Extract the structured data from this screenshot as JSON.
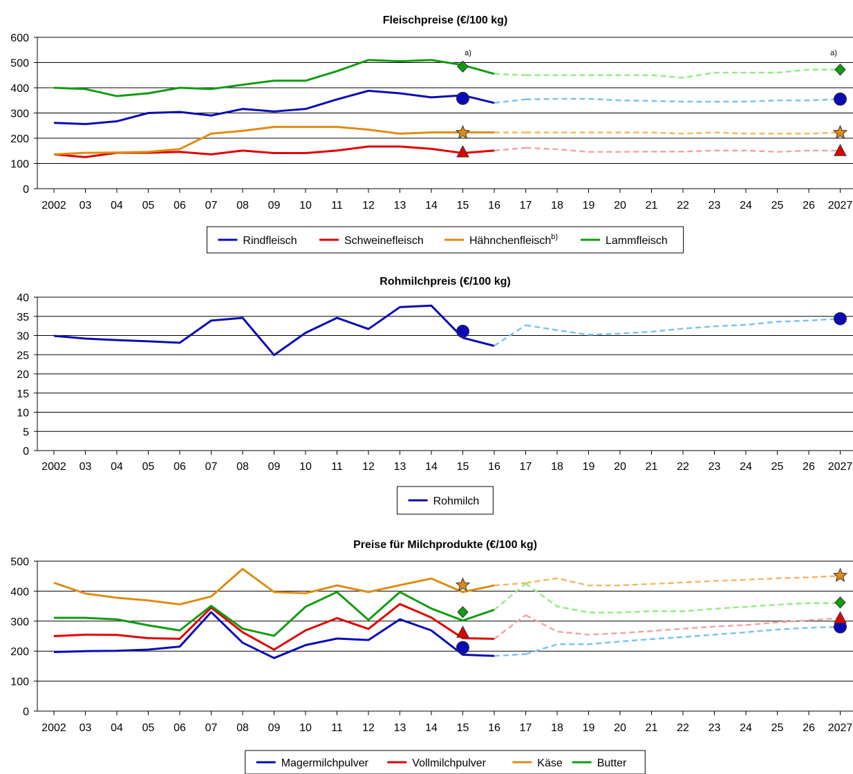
{
  "x_labels": [
    "2002",
    "03",
    "04",
    "05",
    "06",
    "07",
    "08",
    "09",
    "10",
    "11",
    "12",
    "13",
    "14",
    "15",
    "16",
    "17",
    "18",
    "19",
    "20",
    "21",
    "22",
    "23",
    "24",
    "25",
    "26",
    "2027"
  ],
  "chart_data": [
    {
      "type": "line",
      "title": "Fleischpreise (€/100 kg)",
      "ylim": [
        0,
        600
      ],
      "yticks": [
        0,
        100,
        200,
        300,
        400,
        500,
        600
      ],
      "notes": [
        "a)",
        "a)"
      ],
      "series": [
        {
          "name": "Rindfleisch",
          "name_sup": "",
          "color": "#0a0ab4",
          "proj_color": "#79c3ef",
          "marker": "circle",
          "values": [
            261,
            256,
            267,
            300,
            304,
            290,
            316,
            306,
            316,
            354,
            388,
            378,
            362,
            370,
            340,
            354,
            356,
            356,
            350,
            348,
            345,
            345,
            345,
            350,
            350,
            355
          ],
          "ref2015": 358,
          "ref2027": 355
        },
        {
          "name": "Schweinefleisch",
          "name_sup": "",
          "color": "#e00000",
          "proj_color": "#f4a3a3",
          "marker": "triangle",
          "values": [
            136,
            125,
            142,
            142,
            146,
            136,
            151,
            141,
            141,
            151,
            167,
            167,
            158,
            141,
            151,
            162,
            156,
            146,
            146,
            147,
            147,
            151,
            151,
            146,
            151,
            151
          ],
          "ref2015": 145,
          "ref2027": 150
        },
        {
          "name": "Hähnchenfleisch",
          "name_sup": "b)",
          "color": "#e08a12",
          "proj_color": "#f5b662",
          "marker": "star",
          "values": [
            136,
            142,
            143,
            146,
            157,
            218,
            229,
            245,
            245,
            245,
            234,
            218,
            223,
            223,
            223,
            223,
            223,
            223,
            223,
            223,
            218,
            223,
            218,
            218,
            218,
            223
          ],
          "ref2015": 222,
          "ref2027": 222
        },
        {
          "name": "Lammfleisch",
          "name_sup": "",
          "color": "#109c10",
          "proj_color": "#90ee80",
          "marker": "diamond",
          "values": [
            400,
            395,
            367,
            378,
            400,
            395,
            412,
            428,
            428,
            466,
            510,
            505,
            510,
            490,
            455,
            450,
            450,
            450,
            450,
            450,
            440,
            460,
            460,
            460,
            472,
            472
          ],
          "ref2015": 484,
          "ref2027": 472
        }
      ]
    },
    {
      "type": "line",
      "title": "Rohmilchpreis (€/100 kg)",
      "ylim": [
        0,
        40
      ],
      "yticks": [
        0,
        5,
        10,
        15,
        20,
        25,
        30,
        35,
        40
      ],
      "series": [
        {
          "name": "Rohmilch",
          "name_sup": "",
          "color": "#0a0ab4",
          "proj_color": "#79c3ef",
          "marker": "circle",
          "values": [
            29.9,
            29.2,
            28.8,
            28.5,
            28.1,
            33.9,
            34.6,
            24.9,
            30.7,
            34.6,
            31.7,
            37.4,
            37.8,
            29.4,
            27.3,
            32.7,
            31.4,
            30.2,
            30.5,
            31.0,
            31.8,
            32.4,
            32.8,
            33.6,
            33.9,
            34.4
          ],
          "ref2015": 31.1,
          "ref2027": 34.4
        }
      ]
    },
    {
      "type": "line",
      "title": "Preise für Milchprodukte (€/100 kg)",
      "ylim": [
        0,
        500
      ],
      "yticks": [
        0,
        100,
        200,
        300,
        400,
        500
      ],
      "series": [
        {
          "name": "Magermilchpulver",
          "name_sup": "",
          "color": "#0a0ab4",
          "proj_color": "#79c3ef",
          "marker": "circle",
          "values": [
            197,
            200,
            201,
            205,
            215,
            330,
            228,
            177,
            220,
            242,
            237,
            306,
            269,
            188,
            184,
            190,
            223,
            223,
            232,
            240,
            247,
            255,
            263,
            272,
            278,
            281
          ],
          "ref2015": 212,
          "ref2027": 281
        },
        {
          "name": "Vollmilchpulver",
          "name_sup": "",
          "color": "#e00000",
          "proj_color": "#f4a3a3",
          "marker": "triangle",
          "values": [
            250,
            255,
            254,
            243,
            241,
            345,
            263,
            205,
            269,
            310,
            274,
            357,
            312,
            243,
            241,
            320,
            265,
            255,
            260,
            267,
            275,
            282,
            287,
            296,
            303,
            310
          ],
          "ref2015": 262,
          "ref2027": 310
        },
        {
          "name": "Käse",
          "name_sup": "",
          "color": "#e08a12",
          "proj_color": "#f5b662",
          "marker": "star",
          "values": [
            428,
            392,
            378,
            369,
            356,
            382,
            474,
            397,
            393,
            419,
            397,
            420,
            442,
            397,
            419,
            427,
            443,
            419,
            419,
            424,
            429,
            434,
            438,
            443,
            446,
            451
          ],
          "ref2015": 420,
          "ref2027": 452
        },
        {
          "name": "Butter",
          "name_sup": "",
          "color": "#109c10",
          "proj_color": "#90ee80",
          "marker": "diamond",
          "values": [
            311,
            311,
            306,
            286,
            269,
            351,
            275,
            251,
            348,
            397,
            304,
            397,
            342,
            302,
            338,
            425,
            349,
            329,
            329,
            333,
            333,
            341,
            348,
            355,
            360,
            360
          ],
          "ref2015": 330,
          "ref2027": 362
        }
      ]
    }
  ]
}
